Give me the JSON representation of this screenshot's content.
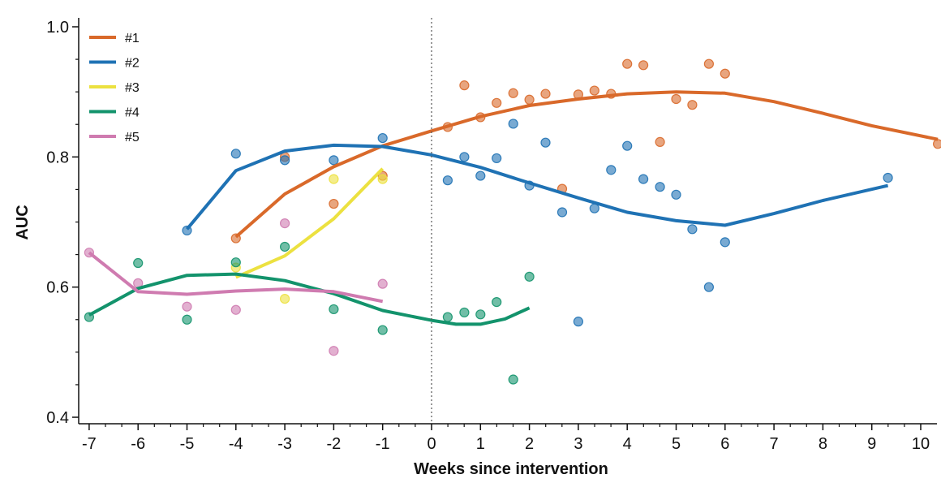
{
  "chart_data": {
    "type": "scatter",
    "xlabel": "Weeks since intervention",
    "ylabel": "AUC",
    "xlim": [
      -7.2,
      10.35
    ],
    "ylim": [
      0.39,
      1.02
    ],
    "x_ticks": [
      -7,
      -6,
      -5,
      -4,
      -3,
      -2,
      -1,
      0,
      1,
      2,
      3,
      4,
      5,
      6,
      7,
      8,
      9,
      10
    ],
    "y_ticks": [
      0.4,
      0.6,
      0.8,
      1.0
    ],
    "y_tick_labels": [
      "0.4",
      "0.6",
      "0.8",
      "1.0"
    ],
    "vline": 0,
    "grid": false,
    "legend_position": "top-left",
    "series": [
      {
        "name": "#1",
        "color": "#d9692a",
        "points": [
          [
            -4,
            0.675
          ],
          [
            -3,
            0.8
          ],
          [
            -2,
            0.728
          ],
          [
            -1,
            0.771
          ],
          [
            0.33,
            0.846
          ],
          [
            0.67,
            0.91
          ],
          [
            1,
            0.861
          ],
          [
            1.33,
            0.883
          ],
          [
            1.67,
            0.898
          ],
          [
            2,
            0.888
          ],
          [
            2.33,
            0.897
          ],
          [
            2.67,
            0.751
          ],
          [
            3,
            0.896
          ],
          [
            3.33,
            0.902
          ],
          [
            3.67,
            0.897
          ],
          [
            4,
            0.943
          ],
          [
            4.33,
            0.941
          ],
          [
            4.67,
            0.823
          ],
          [
            5,
            0.889
          ],
          [
            5.33,
            0.88
          ],
          [
            5.67,
            0.943
          ],
          [
            6,
            0.928
          ],
          [
            10.35,
            0.82
          ]
        ],
        "curve": [
          [
            -4,
            0.677
          ],
          [
            -3,
            0.743
          ],
          [
            -2,
            0.785
          ],
          [
            -1,
            0.817
          ],
          [
            0,
            0.84
          ],
          [
            1,
            0.862
          ],
          [
            2,
            0.879
          ],
          [
            3,
            0.889
          ],
          [
            4,
            0.897
          ],
          [
            5,
            0.9
          ],
          [
            6,
            0.898
          ],
          [
            7,
            0.885
          ],
          [
            8,
            0.867
          ],
          [
            9,
            0.848
          ],
          [
            10.35,
            0.827
          ]
        ]
      },
      {
        "name": "#2",
        "color": "#1f72b4",
        "points": [
          [
            -5,
            0.687
          ],
          [
            -4,
            0.805
          ],
          [
            -3,
            0.795
          ],
          [
            -2,
            0.795
          ],
          [
            -1,
            0.829
          ],
          [
            0.33,
            0.764
          ],
          [
            0.67,
            0.8
          ],
          [
            1,
            0.771
          ],
          [
            1.33,
            0.798
          ],
          [
            1.67,
            0.851
          ],
          [
            2,
            0.756
          ],
          [
            2.33,
            0.822
          ],
          [
            2.67,
            0.715
          ],
          [
            3,
            0.547
          ],
          [
            3.33,
            0.721
          ],
          [
            3.67,
            0.78
          ],
          [
            4,
            0.817
          ],
          [
            4.33,
            0.766
          ],
          [
            4.67,
            0.754
          ],
          [
            5,
            0.742
          ],
          [
            5.33,
            0.689
          ],
          [
            5.67,
            0.6
          ],
          [
            6,
            0.669
          ],
          [
            9.33,
            0.768
          ]
        ],
        "curve": [
          [
            -5,
            0.689
          ],
          [
            -4,
            0.779
          ],
          [
            -3,
            0.809
          ],
          [
            -2,
            0.818
          ],
          [
            -1,
            0.816
          ],
          [
            0,
            0.803
          ],
          [
            1,
            0.784
          ],
          [
            2,
            0.76
          ],
          [
            3,
            0.737
          ],
          [
            4,
            0.715
          ],
          [
            5,
            0.702
          ],
          [
            6,
            0.695
          ],
          [
            7,
            0.713
          ],
          [
            8,
            0.733
          ],
          [
            9.33,
            0.756
          ]
        ]
      },
      {
        "name": "#3",
        "color": "#ece140",
        "points": [
          [
            -4,
            0.63
          ],
          [
            -3,
            0.582
          ],
          [
            -2,
            0.766
          ],
          [
            -1,
            0.766
          ]
        ],
        "curve": [
          [
            -4,
            0.615
          ],
          [
            -3,
            0.648
          ],
          [
            -2,
            0.705
          ],
          [
            -1,
            0.782
          ]
        ]
      },
      {
        "name": "#4",
        "color": "#13936c",
        "points": [
          [
            -7,
            0.554
          ],
          [
            -6,
            0.637
          ],
          [
            -5,
            0.55
          ],
          [
            -4,
            0.638
          ],
          [
            -3,
            0.662
          ],
          [
            -2,
            0.566
          ],
          [
            -1,
            0.534
          ],
          [
            0.33,
            0.554
          ],
          [
            0.67,
            0.561
          ],
          [
            1,
            0.558
          ],
          [
            1.33,
            0.577
          ],
          [
            1.67,
            0.458
          ],
          [
            2,
            0.616
          ]
        ],
        "curve": [
          [
            -7,
            0.557
          ],
          [
            -6,
            0.598
          ],
          [
            -5,
            0.618
          ],
          [
            -4,
            0.62
          ],
          [
            -3,
            0.61
          ],
          [
            -2,
            0.59
          ],
          [
            -1,
            0.564
          ],
          [
            0,
            0.549
          ],
          [
            0.5,
            0.543
          ],
          [
            1,
            0.543
          ],
          [
            1.5,
            0.551
          ],
          [
            2,
            0.568
          ]
        ]
      },
      {
        "name": "#5",
        "color": "#cf7bb0",
        "points": [
          [
            -7,
            0.653
          ],
          [
            -6,
            0.606
          ],
          [
            -5,
            0.57
          ],
          [
            -4,
            0.565
          ],
          [
            -3,
            0.698
          ],
          [
            -2,
            0.502
          ],
          [
            -1,
            0.605
          ]
        ],
        "curve": [
          [
            -7,
            0.653
          ],
          [
            -6,
            0.593
          ],
          [
            -5,
            0.589
          ],
          [
            -4,
            0.594
          ],
          [
            -3,
            0.597
          ],
          [
            -2,
            0.593
          ],
          [
            -1,
            0.578
          ]
        ]
      }
    ]
  }
}
